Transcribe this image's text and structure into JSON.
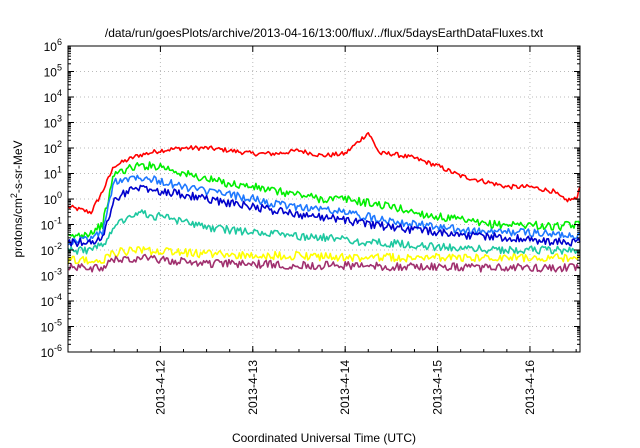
{
  "chart_data": {
    "type": "line",
    "title": "/data/run/goesPlots/archive/2013-04-16/13:00/flux/../flux/5daysEarthDataFluxes.txt",
    "ylabel_base": "protons/cm",
    "ylabel_sup": "2",
    "ylabel_rest": "-s-sr-MeV",
    "xlabel": "Coordinated Universal Time (UTC)",
    "y_scale": "log",
    "ylim": [
      1e-06,
      1000000.0
    ],
    "y_ticks": [
      {
        "exp": "-6"
      },
      {
        "exp": "-5"
      },
      {
        "exp": "-4"
      },
      {
        "exp": "-3"
      },
      {
        "exp": "-2"
      },
      {
        "exp": "-1"
      },
      {
        "exp": "0"
      },
      {
        "exp": "1"
      },
      {
        "exp": "2"
      },
      {
        "exp": "3"
      },
      {
        "exp": "4"
      },
      {
        "exp": "5"
      },
      {
        "exp": "6"
      }
    ],
    "y_tick_base": "10",
    "xlim": [
      "2013-04-11 00:00",
      "2013-04-16 13:00"
    ],
    "x_ticks": [
      "2013-4-12",
      "2013-4-13",
      "2013-4-14",
      "2013-4-15",
      "2013-4-16"
    ],
    "grid": true,
    "series": [
      {
        "color": "#ff0000",
        "points": [
          [
            "04-11 00:00",
            0.5
          ],
          [
            "04-11 06:00",
            0.3
          ],
          [
            "04-11 09:00",
            2
          ],
          [
            "04-11 12:00",
            20
          ],
          [
            "04-11 18:00",
            50
          ],
          [
            "04-12 00:00",
            80
          ],
          [
            "04-12 06:00",
            100
          ],
          [
            "04-12 12:00",
            100
          ],
          [
            "04-12 18:00",
            80
          ],
          [
            "04-13 00:00",
            60
          ],
          [
            "04-13 06:00",
            60
          ],
          [
            "04-13 12:00",
            80
          ],
          [
            "04-13 18:00",
            50
          ],
          [
            "04-14 00:00",
            60
          ],
          [
            "04-14 06:00",
            400
          ],
          [
            "04-14 09:00",
            60
          ],
          [
            "04-14 12:00",
            60
          ],
          [
            "04-14 18:00",
            40
          ],
          [
            "04-15 00:00",
            20
          ],
          [
            "04-15 06:00",
            8
          ],
          [
            "04-15 12:00",
            5
          ],
          [
            "04-15 18:00",
            3
          ],
          [
            "04-16 00:00",
            3
          ],
          [
            "04-16 06:00",
            2
          ],
          [
            "04-16 09:00",
            0.9
          ],
          [
            "04-16 12:00",
            1
          ],
          [
            "04-16 13:00",
            3
          ]
        ]
      },
      {
        "color": "#00ee00",
        "points": [
          [
            "04-11 00:00",
            0.03
          ],
          [
            "04-11 06:00",
            0.05
          ],
          [
            "04-11 09:00",
            0.1
          ],
          [
            "04-11 12:00",
            10
          ],
          [
            "04-11 18:00",
            20
          ],
          [
            "04-12 00:00",
            20
          ],
          [
            "04-12 06:00",
            10
          ],
          [
            "04-12 12:00",
            6
          ],
          [
            "04-12 18:00",
            4
          ],
          [
            "04-13 00:00",
            3
          ],
          [
            "04-13 06:00",
            2
          ],
          [
            "04-13 12:00",
            1.5
          ],
          [
            "04-13 18:00",
            1
          ],
          [
            "04-14 00:00",
            1
          ],
          [
            "04-14 06:00",
            0.7
          ],
          [
            "04-14 12:00",
            0.5
          ],
          [
            "04-14 18:00",
            0.3
          ],
          [
            "04-15 00:00",
            0.2
          ],
          [
            "04-15 06:00",
            0.15
          ],
          [
            "04-15 12:00",
            0.1
          ],
          [
            "04-15 18:00",
            0.1
          ],
          [
            "04-16 00:00",
            0.1
          ],
          [
            "04-16 06:00",
            0.08
          ],
          [
            "04-16 13:00",
            0.1
          ]
        ]
      },
      {
        "color": "#1e78ff",
        "points": [
          [
            "04-11 00:00",
            0.02
          ],
          [
            "04-11 06:00",
            0.03
          ],
          [
            "04-11 09:00",
            0.05
          ],
          [
            "04-11 12:00",
            5
          ],
          [
            "04-11 18:00",
            8
          ],
          [
            "04-12 00:00",
            5
          ],
          [
            "04-12 06:00",
            3
          ],
          [
            "04-12 12:00",
            2
          ],
          [
            "04-12 18:00",
            1.5
          ],
          [
            "04-13 00:00",
            1
          ],
          [
            "04-13 06:00",
            0.6
          ],
          [
            "04-13 12:00",
            0.5
          ],
          [
            "04-13 18:00",
            0.4
          ],
          [
            "04-14 00:00",
            0.3
          ],
          [
            "04-14 06:00",
            0.2
          ],
          [
            "04-14 12:00",
            0.15
          ],
          [
            "04-14 18:00",
            0.1
          ],
          [
            "04-15 00:00",
            0.08
          ],
          [
            "04-15 06:00",
            0.06
          ],
          [
            "04-15 12:00",
            0.05
          ],
          [
            "04-15 18:00",
            0.05
          ],
          [
            "04-16 00:00",
            0.05
          ],
          [
            "04-16 06:00",
            0.04
          ],
          [
            "04-16 13:00",
            0.04
          ]
        ]
      },
      {
        "color": "#0000cc",
        "points": [
          [
            "04-11 00:00",
            0.02
          ],
          [
            "04-11 06:00",
            0.02
          ],
          [
            "04-11 09:00",
            0.03
          ],
          [
            "04-11 12:00",
            1
          ],
          [
            "04-11 18:00",
            3
          ],
          [
            "04-12 00:00",
            2
          ],
          [
            "04-12 06:00",
            1.5
          ],
          [
            "04-12 12:00",
            1
          ],
          [
            "04-12 18:00",
            0.7
          ],
          [
            "04-13 00:00",
            0.5
          ],
          [
            "04-13 06:00",
            0.35
          ],
          [
            "04-13 12:00",
            0.25
          ],
          [
            "04-13 18:00",
            0.2
          ],
          [
            "04-14 00:00",
            0.15
          ],
          [
            "04-14 06:00",
            0.1
          ],
          [
            "04-14 12:00",
            0.08
          ],
          [
            "04-14 18:00",
            0.06
          ],
          [
            "04-15 00:00",
            0.05
          ],
          [
            "04-15 06:00",
            0.04
          ],
          [
            "04-15 12:00",
            0.035
          ],
          [
            "04-15 18:00",
            0.03
          ],
          [
            "04-16 00:00",
            0.025
          ],
          [
            "04-16 06:00",
            0.02
          ],
          [
            "04-16 13:00",
            0.02
          ]
        ]
      },
      {
        "color": "#1ec8a0",
        "points": [
          [
            "04-11 00:00",
            0.01
          ],
          [
            "04-11 06:00",
            0.01
          ],
          [
            "04-11 09:00",
            0.015
          ],
          [
            "04-11 12:00",
            0.1
          ],
          [
            "04-11 18:00",
            0.3
          ],
          [
            "04-12 00:00",
            0.2
          ],
          [
            "04-12 06:00",
            0.12
          ],
          [
            "04-12 12:00",
            0.08
          ],
          [
            "04-12 18:00",
            0.06
          ],
          [
            "04-13 00:00",
            0.05
          ],
          [
            "04-13 06:00",
            0.04
          ],
          [
            "04-13 12:00",
            0.035
          ],
          [
            "04-13 18:00",
            0.03
          ],
          [
            "04-14 00:00",
            0.025
          ],
          [
            "04-14 06:00",
            0.02
          ],
          [
            "04-14 12:00",
            0.018
          ],
          [
            "04-14 18:00",
            0.015
          ],
          [
            "04-15 00:00",
            0.013
          ],
          [
            "04-15 06:00",
            0.012
          ],
          [
            "04-15 12:00",
            0.011
          ],
          [
            "04-15 18:00",
            0.01
          ],
          [
            "04-16 00:00",
            0.01
          ],
          [
            "04-16 06:00",
            0.01
          ],
          [
            "04-16 13:00",
            0.01
          ]
        ]
      },
      {
        "color": "#ffff00",
        "points": [
          [
            "04-11 00:00",
            0.004
          ],
          [
            "04-11 09:00",
            0.004
          ],
          [
            "04-11 12:00",
            0.008
          ],
          [
            "04-11 18:00",
            0.01
          ],
          [
            "04-12 00:00",
            0.009
          ],
          [
            "04-12 12:00",
            0.007
          ],
          [
            "04-13 00:00",
            0.006
          ],
          [
            "04-13 12:00",
            0.006
          ],
          [
            "04-14 00:00",
            0.005
          ],
          [
            "04-14 12:00",
            0.005
          ],
          [
            "04-15 00:00",
            0.005
          ],
          [
            "04-15 12:00",
            0.005
          ],
          [
            "04-16 00:00",
            0.005
          ],
          [
            "04-16 13:00",
            0.005
          ]
        ]
      },
      {
        "color": "#a0306e",
        "points": [
          [
            "04-11 00:00",
            0.002
          ],
          [
            "04-11 09:00",
            0.002
          ],
          [
            "04-11 12:00",
            0.004
          ],
          [
            "04-11 18:00",
            0.005
          ],
          [
            "04-12 00:00",
            0.004
          ],
          [
            "04-12 12:00",
            0.003
          ],
          [
            "04-13 00:00",
            0.0028
          ],
          [
            "04-13 12:00",
            0.0025
          ],
          [
            "04-14 00:00",
            0.0025
          ],
          [
            "04-14 12:00",
            0.0022
          ],
          [
            "04-15 00:00",
            0.0022
          ],
          [
            "04-15 12:00",
            0.002
          ],
          [
            "04-16 00:00",
            0.002
          ],
          [
            "04-16 13:00",
            0.002
          ]
        ]
      }
    ]
  }
}
